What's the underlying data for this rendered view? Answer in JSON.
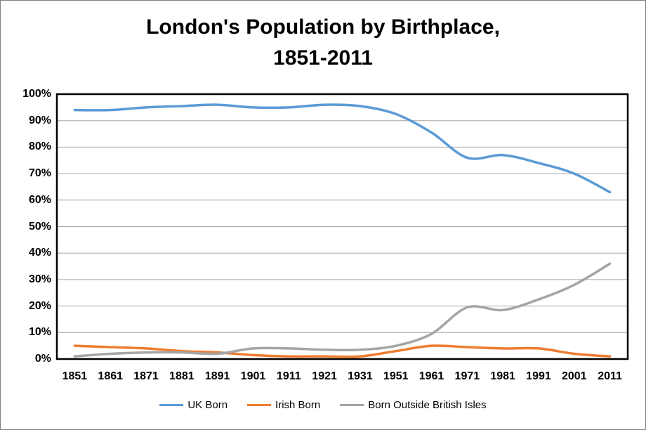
{
  "frame": {
    "background": "#FFFFFF",
    "border_color": "#7F7F7F"
  },
  "chart_data": {
    "type": "line",
    "title": "London's Population by Birthplace,",
    "subtitle": "1851-2011",
    "categories": [
      "1851",
      "1861",
      "1871",
      "1881",
      "1891",
      "1901",
      "1911",
      "1921",
      "1931",
      "1951",
      "1961",
      "1971",
      "1981",
      "1991",
      "2001",
      "2011"
    ],
    "series": [
      {
        "name": "UK Born",
        "color": "#5B9BD5",
        "values": [
          94,
          94,
          95,
          95.5,
          96,
          95,
          95,
          96,
          95.5,
          92.5,
          85.5,
          76,
          77,
          74,
          70,
          63
        ]
      },
      {
        "name": "Irish Born",
        "color": "#ED7D31",
        "values": [
          5,
          4.5,
          4,
          3,
          2.5,
          1.5,
          1,
          1,
          1,
          3,
          5,
          4.5,
          4,
          4,
          2,
          1
        ]
      },
      {
        "name": "Born Outside British Isles",
        "color": "#A5A5A5",
        "values": [
          1,
          2,
          2.5,
          2.5,
          2,
          4,
          4,
          3.5,
          3.5,
          5,
          9.5,
          19.5,
          18.5,
          22.5,
          28,
          36
        ]
      }
    ],
    "xlabel": "",
    "ylabel": "",
    "ylim": [
      0,
      100
    ],
    "y_tick_step": 10,
    "y_ticks": [
      "0%",
      "10%",
      "20%",
      "30%",
      "40%",
      "50%",
      "60%",
      "70%",
      "80%",
      "90%",
      "100%"
    ],
    "grid": "horizontal",
    "grid_color": "#A6A6A6",
    "axis_color": "#000000",
    "text_color": "#000000",
    "legend_position": "bottom",
    "line_style": "smoothed"
  }
}
